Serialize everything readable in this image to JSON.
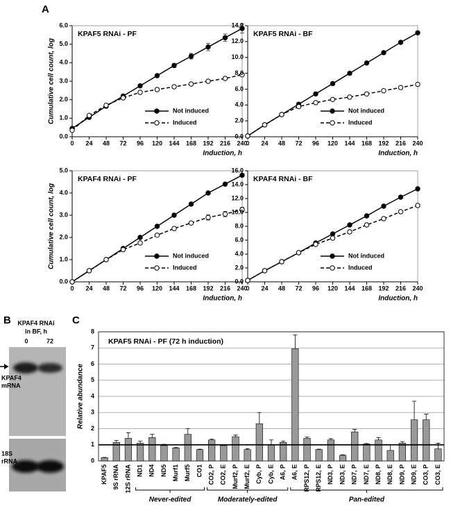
{
  "panels": [
    "A",
    "B",
    "C"
  ],
  "blot": {
    "title": [
      "KPAF4 RNAi",
      "in BF, h"
    ],
    "lanes": [
      "0",
      "72"
    ],
    "bands": [
      [
        "KPAF4",
        "mRNA"
      ],
      [
        "18S",
        "rRNA"
      ]
    ]
  },
  "chart_data": [
    {
      "type": "line",
      "title": "KPAF5 RNAi - PF",
      "xlabel": "Induction, h",
      "ylabel": "Cumulative cell count, log",
      "x": [
        0,
        24,
        48,
        72,
        96,
        120,
        144,
        168,
        192,
        216,
        240
      ],
      "xlim": [
        0,
        240
      ],
      "xticks": [
        0,
        24,
        48,
        72,
        96,
        120,
        144,
        168,
        192,
        216,
        240
      ],
      "ylim": [
        0,
        6
      ],
      "yticks": [
        {
          "value": 0,
          "label": "0.0"
        },
        {
          "value": 1,
          "label": "1.0"
        },
        {
          "value": 2,
          "label": "2.0"
        },
        {
          "value": 3,
          "label": "3.0"
        },
        {
          "value": 4,
          "label": "4.0"
        },
        {
          "value": 5,
          "label": "5.0"
        },
        {
          "value": 6,
          "label": "6.0"
        }
      ],
      "series": [
        {
          "name": "Not induced",
          "color": "#000000",
          "marker_fill": "#000000",
          "line_style": "solid",
          "values": [
            0.45,
            1.05,
            1.65,
            2.2,
            2.75,
            3.3,
            3.85,
            4.35,
            4.85,
            5.35,
            5.85
          ],
          "errors": [
            0.02,
            0.02,
            0.03,
            0.05,
            0.05,
            0.05,
            0.1,
            0.15,
            0.2,
            0.2,
            0.25
          ]
        },
        {
          "name": "Induced",
          "color": "#000000",
          "marker_fill": "#ffffff",
          "line_style": "dashed",
          "values": [
            0.35,
            1.15,
            1.7,
            2.1,
            2.4,
            2.55,
            2.7,
            2.85,
            3.0,
            3.15,
            3.35
          ]
        }
      ]
    },
    {
      "type": "line",
      "title": "KPAF5 RNAi - BF",
      "xlabel": "Induction, h",
      "x": [
        0,
        24,
        48,
        72,
        96,
        120,
        144,
        168,
        192,
        216,
        240
      ],
      "xlim": [
        0,
        240
      ],
      "xticks": [
        0,
        24,
        48,
        72,
        96,
        120,
        144,
        168,
        192,
        216,
        240
      ],
      "ylim": [
        0,
        14
      ],
      "yticks": [
        {
          "value": 0,
          "label": "0.0"
        },
        {
          "value": 2,
          "label": "2.0"
        },
        {
          "value": 4,
          "label": "4.0"
        },
        {
          "value": 6,
          "label": "6.0"
        },
        {
          "value": 8,
          "label": "8.0"
        },
        {
          "value": 10,
          "label": "10.0"
        },
        {
          "value": 12,
          "label": "12.0"
        },
        {
          "value": 14,
          "label": "14.0"
        }
      ],
      "series": [
        {
          "name": "Not induced",
          "color": "#000000",
          "marker_fill": "#000000",
          "line_style": "solid",
          "values": [
            0.1,
            1.5,
            2.8,
            4.1,
            5.4,
            6.7,
            8.0,
            9.3,
            10.6,
            11.9,
            13.1
          ]
        },
        {
          "name": "Induced",
          "color": "#000000",
          "marker_fill": "#ffffff",
          "line_style": "dashed",
          "values": [
            0.1,
            1.5,
            2.8,
            3.8,
            4.3,
            4.7,
            5.0,
            5.4,
            5.8,
            6.2,
            6.6
          ]
        }
      ]
    },
    {
      "type": "line",
      "title": "KPAF4 RNAi - PF",
      "xlabel": "Induction, h",
      "ylabel": "Cumulative cell count, log",
      "x": [
        0,
        24,
        48,
        72,
        96,
        120,
        144,
        168,
        192,
        216,
        240
      ],
      "xlim": [
        0,
        240
      ],
      "xticks": [
        0,
        24,
        48,
        72,
        96,
        120,
        144,
        168,
        192,
        216,
        240
      ],
      "ylim": [
        0,
        5
      ],
      "yticks": [
        {
          "value": 0,
          "label": "0.0"
        },
        {
          "value": 1,
          "label": "1.0"
        },
        {
          "value": 2,
          "label": "2.0"
        },
        {
          "value": 3,
          "label": "3.0"
        },
        {
          "value": 4,
          "label": "4.0"
        },
        {
          "value": 5,
          "label": "5.0"
        }
      ],
      "series": [
        {
          "name": "Not induced",
          "color": "#000000",
          "marker_fill": "#000000",
          "line_style": "solid",
          "values": [
            0,
            0.5,
            1.0,
            1.5,
            2.0,
            2.5,
            3.0,
            3.5,
            4.0,
            4.4,
            4.8
          ]
        },
        {
          "name": "Induced",
          "color": "#000000",
          "marker_fill": "#ffffff",
          "line_style": "dashed",
          "values": [
            0,
            0.5,
            1.0,
            1.45,
            1.75,
            2.1,
            2.4,
            2.65,
            2.9,
            3.05,
            3.25
          ],
          "errors": [
            0,
            0,
            0,
            0,
            0,
            0,
            0,
            0.05,
            0.12,
            0.12,
            0.1
          ]
        }
      ]
    },
    {
      "type": "line",
      "title": "KPAF4 RNAi - BF",
      "xlabel": "Induction, h",
      "x": [
        0,
        24,
        48,
        72,
        96,
        120,
        144,
        168,
        192,
        216,
        240
      ],
      "xlim": [
        0,
        240
      ],
      "xticks": [
        0,
        24,
        48,
        72,
        96,
        120,
        144,
        168,
        192,
        216,
        240
      ],
      "ylim": [
        0,
        16
      ],
      "yticks": [
        {
          "value": 0,
          "label": "0.0"
        },
        {
          "value": 2,
          "label": "2.0"
        },
        {
          "value": 4,
          "label": "4.0"
        },
        {
          "value": 6,
          "label": "6.0"
        },
        {
          "value": 8,
          "label": "8.0"
        },
        {
          "value": 10,
          "label": "10.0"
        },
        {
          "value": 12,
          "label": "12.0"
        },
        {
          "value": 14,
          "label": "14.0"
        },
        {
          "value": 16,
          "label": "16.0"
        }
      ],
      "series": [
        {
          "name": "Not induced",
          "color": "#000000",
          "marker_fill": "#000000",
          "line_style": "solid",
          "values": [
            0.2,
            1.6,
            2.9,
            4.2,
            5.6,
            6.9,
            8.2,
            9.5,
            10.9,
            12.2,
            13.4
          ]
        },
        {
          "name": "Induced",
          "color": "#000000",
          "marker_fill": "#ffffff",
          "line_style": "dashed",
          "values": [
            0.2,
            1.6,
            2.9,
            4.2,
            5.4,
            6.3,
            7.2,
            8.2,
            9.1,
            10.1,
            11.0
          ]
        }
      ]
    },
    {
      "type": "bar",
      "title": "KPAF5 RNAi - PF (72 h induction)",
      "ylabel": "Relative abundance",
      "color": "#999999",
      "grid": true,
      "categories": [
        "KPAF5",
        "9S rRNA",
        "12S rRNA",
        "ND1",
        "ND4",
        "ND5",
        "Murf1",
        "Murf5",
        "CO1",
        "CO2, P",
        "CO2, E",
        "Murf2, P",
        "Murf2, E",
        "Cyb, P",
        "Cyb, E",
        "A6, P",
        "A6, E",
        "RPS12, P",
        "RPS12, E",
        "ND3, P",
        "ND3, E",
        "ND7, P",
        "ND7, E",
        "ND8, P",
        "ND8, E",
        "ND9, P",
        "ND9, E",
        "CO3, P",
        "CO3, E"
      ],
      "values": [
        0.2,
        1.15,
        1.4,
        1.1,
        1.45,
        0.95,
        0.8,
        1.65,
        0.7,
        1.3,
        0.95,
        1.5,
        0.7,
        2.3,
        1.0,
        1.15,
        6.95,
        1.4,
        0.7,
        1.3,
        0.35,
        1.8,
        1.05,
        1.3,
        0.65,
        1.1,
        2.55,
        2.55,
        0.75
      ],
      "errors": [
        0.02,
        0.12,
        0.35,
        0.12,
        0.2,
        0.08,
        0.03,
        0.35,
        0.03,
        0.05,
        0.03,
        0.1,
        0.06,
        0.7,
        0.3,
        0.08,
        0.85,
        0.08,
        0.03,
        0.08,
        0.03,
        0.15,
        0.03,
        0.15,
        0.35,
        0.1,
        1.15,
        0.35,
        0.35
      ],
      "hline": 1,
      "ylim": [
        0,
        8
      ],
      "yticks": [
        0,
        1,
        2,
        3,
        4,
        5,
        6,
        7,
        8
      ],
      "groups": [
        "Never-edited",
        "Moderately-edited",
        "Pan-edited"
      ]
    }
  ]
}
